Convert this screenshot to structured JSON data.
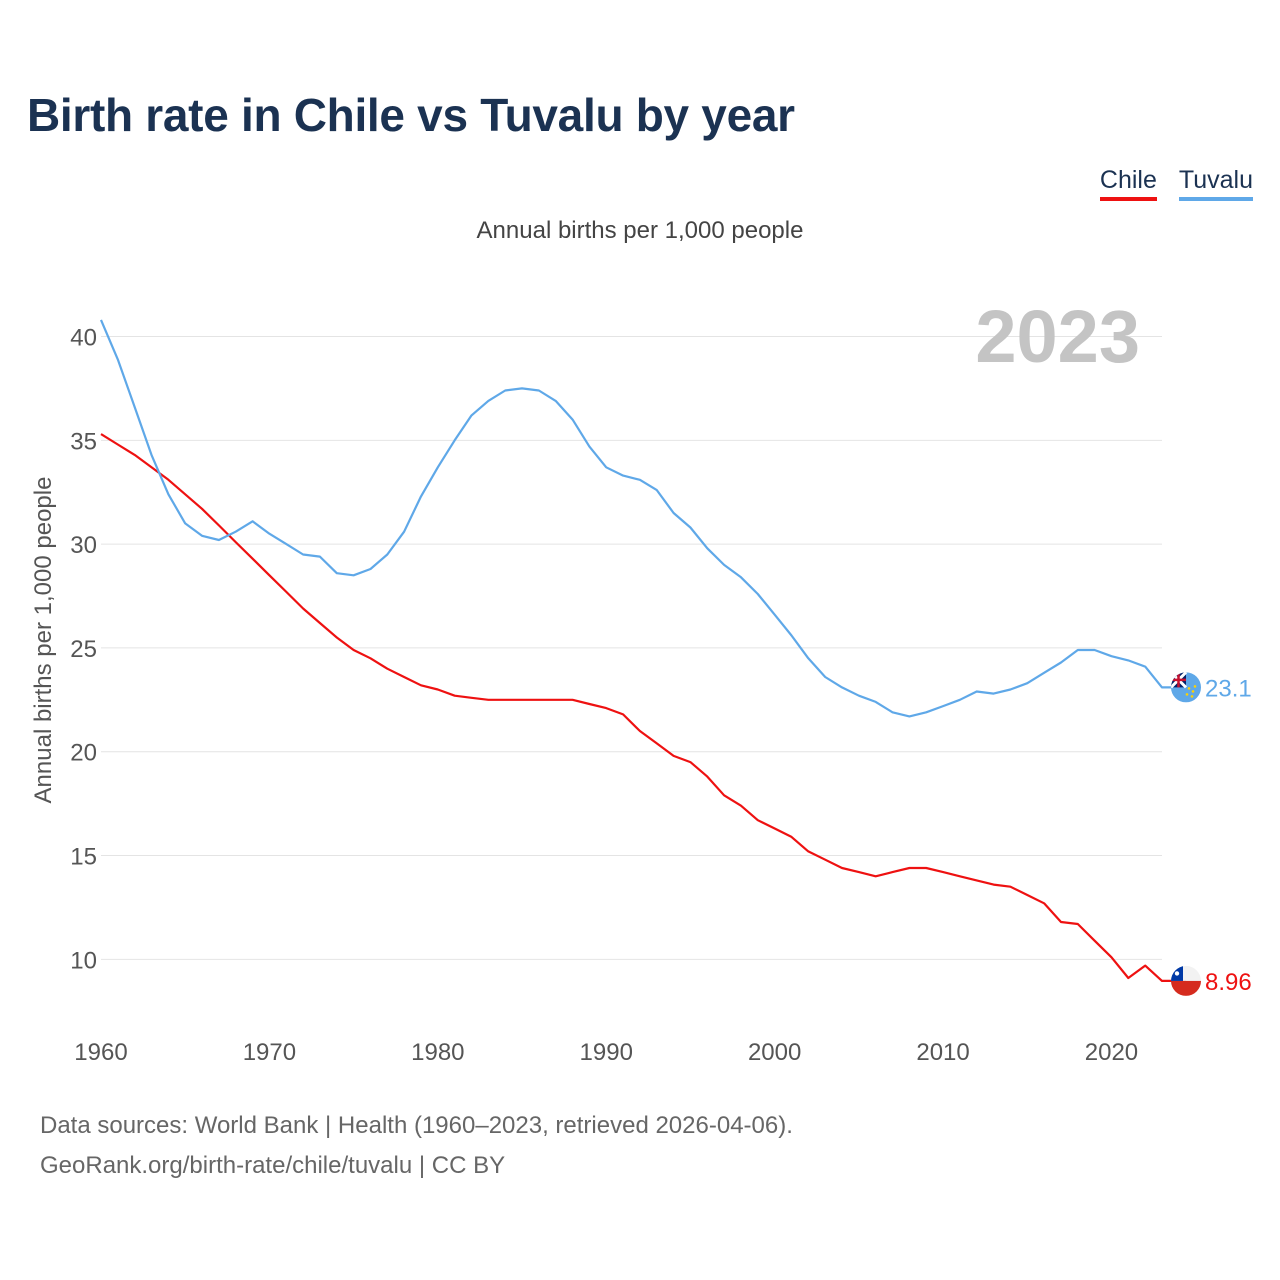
{
  "title": "Birth rate in Chile vs Tuvalu by year",
  "subtitle": "Annual births per 1,000 people",
  "year_badge": "2023",
  "legend": [
    {
      "label": "Chile",
      "color": "#ee1111"
    },
    {
      "label": "Tuvalu",
      "color": "#5fa8e8"
    }
  ],
  "source": {
    "line1": "Data sources: World Bank | Health (1960–2023, retrieved 2026-04-06).",
    "line2": "GeoRank.org/birth-rate/chile/tuvalu | CC BY"
  },
  "chart_data": {
    "type": "line",
    "title": "Birth rate in Chile vs Tuvalu by year",
    "ylabel": "Annual births per 1,000 people",
    "xlabel": "",
    "xlim": [
      1960,
      2023
    ],
    "ylim": [
      6.5,
      42
    ],
    "xticks": [
      1960,
      1970,
      1980,
      1990,
      2000,
      2010,
      2020
    ],
    "yticks": [
      10,
      15,
      20,
      25,
      30,
      35,
      40
    ],
    "grid": true,
    "legend_position": "top-right",
    "x": [
      1960,
      1961,
      1962,
      1963,
      1964,
      1965,
      1966,
      1967,
      1968,
      1969,
      1970,
      1971,
      1972,
      1973,
      1974,
      1975,
      1976,
      1977,
      1978,
      1979,
      1980,
      1981,
      1982,
      1983,
      1984,
      1985,
      1986,
      1987,
      1988,
      1989,
      1990,
      1991,
      1992,
      1993,
      1994,
      1995,
      1996,
      1997,
      1998,
      1999,
      2000,
      2001,
      2002,
      2003,
      2004,
      2005,
      2006,
      2007,
      2008,
      2009,
      2010,
      2011,
      2012,
      2013,
      2014,
      2015,
      2016,
      2017,
      2018,
      2019,
      2020,
      2021,
      2022,
      2023
    ],
    "series": [
      {
        "name": "Chile",
        "color": "#ee1111",
        "end_label": "8.96",
        "values": [
          35.3,
          34.8,
          34.3,
          33.7,
          33.1,
          32.4,
          31.7,
          30.9,
          30.1,
          29.3,
          28.5,
          27.7,
          26.9,
          26.2,
          25.5,
          24.9,
          24.5,
          24.0,
          23.6,
          23.2,
          23.0,
          22.7,
          22.6,
          22.5,
          22.5,
          22.5,
          22.5,
          22.5,
          22.5,
          22.3,
          22.1,
          21.8,
          21.0,
          20.4,
          19.8,
          19.5,
          18.8,
          17.9,
          17.4,
          16.7,
          16.3,
          15.9,
          15.2,
          14.8,
          14.4,
          14.2,
          14.0,
          14.2,
          14.4,
          14.4,
          14.2,
          14.0,
          13.8,
          13.6,
          13.5,
          13.1,
          12.7,
          11.8,
          11.7,
          10.9,
          10.1,
          9.1,
          9.7,
          8.96
        ]
      },
      {
        "name": "Tuvalu",
        "color": "#5fa8e8",
        "end_label": "23.1",
        "values": [
          40.8,
          38.9,
          36.6,
          34.3,
          32.4,
          31.0,
          30.4,
          30.2,
          30.6,
          31.1,
          30.5,
          30.0,
          29.5,
          29.4,
          28.6,
          28.5,
          28.8,
          29.5,
          30.6,
          32.3,
          33.7,
          35.0,
          36.2,
          36.9,
          37.4,
          37.5,
          37.4,
          36.9,
          36.0,
          34.7,
          33.7,
          33.3,
          33.1,
          32.6,
          31.5,
          30.8,
          29.8,
          29.0,
          28.4,
          27.6,
          26.6,
          25.6,
          24.5,
          23.6,
          23.1,
          22.7,
          22.4,
          21.9,
          21.7,
          21.9,
          22.2,
          22.5,
          22.9,
          22.8,
          23.0,
          23.3,
          23.8,
          24.3,
          24.9,
          24.9,
          24.6,
          24.4,
          24.1,
          23.1
        ]
      }
    ]
  }
}
